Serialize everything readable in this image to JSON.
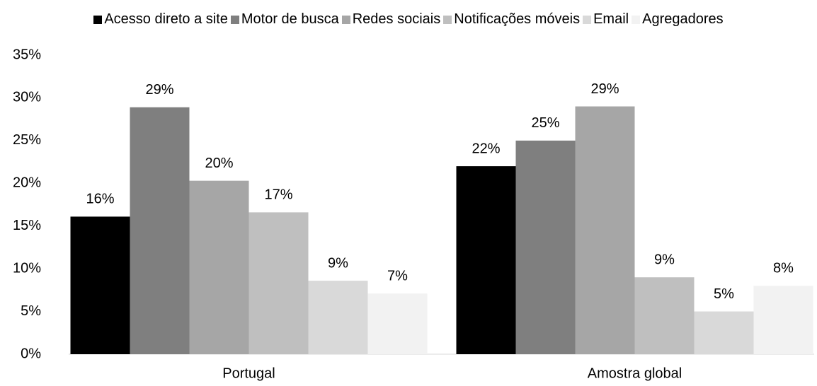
{
  "chart_data": {
    "type": "bar",
    "categories": [
      "Portugal",
      "Amostra global"
    ],
    "series": [
      {
        "name": "Acesso direto a site",
        "color": "#000000",
        "values": [
          16.1,
          22
        ],
        "value_labels": [
          "16%",
          "22%"
        ]
      },
      {
        "name": "Motor de busca",
        "color": "#7f7f7f",
        "values": [
          28.9,
          25
        ],
        "value_labels": [
          "29%",
          "25%"
        ]
      },
      {
        "name": "Redes sociais",
        "color": "#a6a6a6",
        "values": [
          20.3,
          29
        ],
        "value_labels": [
          "20%",
          "29%"
        ]
      },
      {
        "name": "Notificações móveis",
        "color": "#bfbfbf",
        "values": [
          16.6,
          9
        ],
        "value_labels": [
          "17%",
          "9%"
        ]
      },
      {
        "name": "Email",
        "color": "#d9d9d9",
        "values": [
          8.6,
          5
        ],
        "value_labels": [
          "9%",
          "5%"
        ]
      },
      {
        "name": "Agregadores",
        "color": "#f2f2f2",
        "values": [
          7.1,
          8
        ],
        "value_labels": [
          "7%",
          "8%"
        ]
      }
    ],
    "ylim": [
      0,
      35
    ],
    "yticks": [
      {
        "value": 0,
        "label": "0%"
      },
      {
        "value": 5,
        "label": "5%"
      },
      {
        "value": 10,
        "label": "10%"
      },
      {
        "value": 15,
        "label": "15%"
      },
      {
        "value": 20,
        "label": "20%"
      },
      {
        "value": 25,
        "label": "25%"
      },
      {
        "value": 30,
        "label": "30%"
      },
      {
        "value": 35,
        "label": "35%"
      }
    ],
    "legend": "top",
    "grid": false
  }
}
